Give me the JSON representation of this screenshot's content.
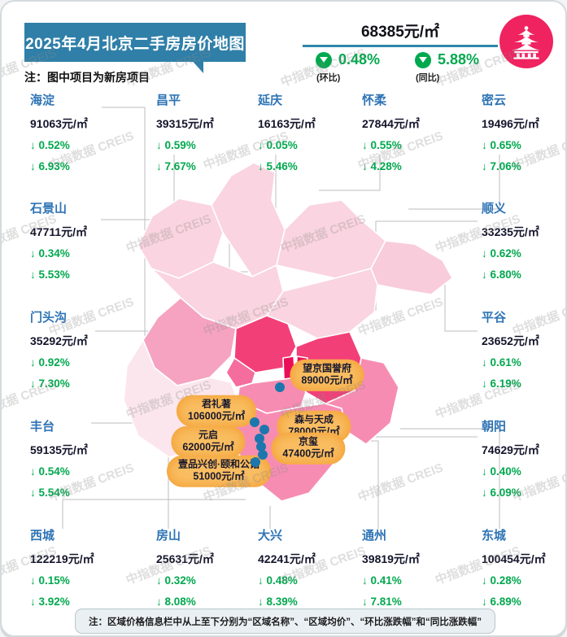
{
  "header": {
    "title": "2025年4月北京二手房房价地图",
    "note": "注：图中项目为新房项目",
    "avg_price": "68385元/㎡",
    "mom_value": "0.48%",
    "mom_label": "(环比)",
    "yoy_value": "5.88%",
    "yoy_label": "(同比)",
    "logo": "temple-of-heaven-icon"
  },
  "districts": [
    {
      "name": "海淀",
      "price": "91063元/㎡",
      "mom": "↓ 0.52%",
      "yoy": "↓ 6.93%"
    },
    {
      "name": "昌平",
      "price": "39315元/㎡",
      "mom": "↓ 0.59%",
      "yoy": "↓ 7.67%"
    },
    {
      "name": "延庆",
      "price": "16163元/㎡",
      "mom": "↓ 0.05%",
      "yoy": "↓ 5.46%"
    },
    {
      "name": "怀柔",
      "price": "27844元/㎡",
      "mom": "↓ 0.55%",
      "yoy": "↓ 4.28%"
    },
    {
      "name": "密云",
      "price": "19496元/㎡",
      "mom": "↓ 0.65%",
      "yoy": "↓ 7.06%"
    },
    {
      "name": "石景山",
      "price": "47711元/㎡",
      "mom": "↓ 0.34%",
      "yoy": "↓ 5.53%"
    },
    {
      "name": "门头沟",
      "price": "35292元/㎡",
      "mom": "↓ 0.92%",
      "yoy": "↓ 7.30%"
    },
    {
      "name": "丰台",
      "price": "59135元/㎡",
      "mom": "↓ 0.54%",
      "yoy": "↓ 5.54%"
    },
    {
      "name": "顺义",
      "price": "33235元/㎡",
      "mom": "↓ 0.62%",
      "yoy": "↓ 6.80%"
    },
    {
      "name": "平谷",
      "price": "23652元/㎡",
      "mom": "↓ 0.61%",
      "yoy": "↓ 6.19%"
    },
    {
      "name": "朝阳",
      "price": "74629元/㎡",
      "mom": "↓ 0.40%",
      "yoy": "↓ 6.09%"
    },
    {
      "name": "西城",
      "price": "122219元/㎡",
      "mom": "↓ 0.15%",
      "yoy": "↓ 3.92%"
    },
    {
      "name": "房山",
      "price": "25631元/㎡",
      "mom": "↓ 0.32%",
      "yoy": "↓ 8.08%"
    },
    {
      "name": "大兴",
      "price": "42241元/㎡",
      "mom": "↓ 0.48%",
      "yoy": "↓ 8.39%"
    },
    {
      "name": "通州",
      "price": "39819元/㎡",
      "mom": "↓ 0.41%",
      "yoy": "↓ 7.81%"
    },
    {
      "name": "东城",
      "price": "100454元/㎡",
      "mom": "↓ 0.28%",
      "yoy": "↓ 6.89%"
    }
  ],
  "projects": [
    {
      "name": "望京国誉府",
      "price": "89000元/㎡"
    },
    {
      "name": "君礼著",
      "price": "106000元/㎡"
    },
    {
      "name": "森与天成",
      "price": "78000元/㎡"
    },
    {
      "name": "元启",
      "price": "62000元/㎡"
    },
    {
      "name": "京玺",
      "price": "47400元/㎡"
    },
    {
      "name": "壹品兴创·颐和公馆",
      "price": "51000元/㎡"
    }
  ],
  "footer": {
    "note": "注：区域价格信息栏中从上至下分别为“区域名称”、“区域均价”、“环比涨跌幅”和“同比涨跌幅”"
  },
  "watermark": {
    "text": "中指数据 CREIS"
  },
  "colors": {
    "banner_blue": "#2F7FA8",
    "district_name_blue": "#2E74B5",
    "change_green": "#00A84E",
    "logo_crimson": "#EF2360",
    "callout_orange": "#F9BE62",
    "marker_blue": "#1C77AE",
    "map_lightest": "#FAD4E0",
    "map_medium": "#F78CB2",
    "map_dark": "#F23F78",
    "map_core": "#EA0E59"
  },
  "chart_data": {
    "type": "table",
    "title": "2025年4月北京二手房房价地图",
    "columns": [
      "区域名称",
      "区域均价(元/㎡)",
      "环比涨跌幅",
      "同比涨跌幅"
    ],
    "rows": [
      [
        "海淀",
        91063,
        "-0.52%",
        "-6.93%"
      ],
      [
        "昌平",
        39315,
        "-0.59%",
        "-7.67%"
      ],
      [
        "延庆",
        16163,
        "-0.05%",
        "-5.46%"
      ],
      [
        "怀柔",
        27844,
        "-0.55%",
        "-4.28%"
      ],
      [
        "密云",
        19496,
        "-0.65%",
        "-7.06%"
      ],
      [
        "石景山",
        47711,
        "-0.34%",
        "-5.53%"
      ],
      [
        "门头沟",
        35292,
        "-0.92%",
        "-7.30%"
      ],
      [
        "丰台",
        59135,
        "-0.54%",
        "-5.54%"
      ],
      [
        "顺义",
        33235,
        "-0.62%",
        "-6.80%"
      ],
      [
        "平谷",
        23652,
        "-0.61%",
        "-6.19%"
      ],
      [
        "朝阳",
        74629,
        "-0.40%",
        "-6.09%"
      ],
      [
        "西城",
        122219,
        "-0.15%",
        "-3.92%"
      ],
      [
        "房山",
        25631,
        "-0.32%",
        "-8.08%"
      ],
      [
        "大兴",
        42241,
        "-0.48%",
        "-8.39%"
      ],
      [
        "通州",
        39819,
        "-0.41%",
        "-7.81%"
      ],
      [
        "东城",
        100454,
        "-0.28%",
        "-6.89%"
      ]
    ],
    "summary": {
      "citywide_avg": 68385,
      "mom": "-0.48%",
      "yoy": "-5.88%"
    },
    "new_projects": [
      [
        "望京国誉府",
        89000
      ],
      [
        "君礼著",
        106000
      ],
      [
        "森与天成",
        78000
      ],
      [
        "元启",
        62000
      ],
      [
        "京玺",
        47400
      ],
      [
        "壹品兴创·颐和公馆",
        51000
      ]
    ]
  }
}
